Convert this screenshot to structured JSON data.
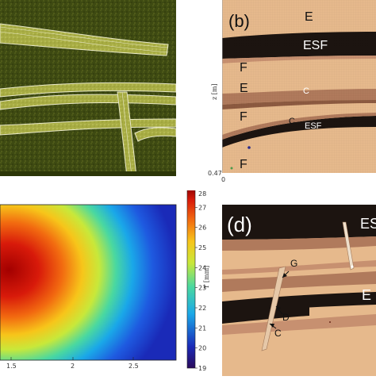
{
  "panel_b": {
    "label": "(b)",
    "layers": [
      "E",
      "ESF",
      "F",
      "E",
      "C",
      "F",
      "C",
      "ESF",
      "F"
    ],
    "y_axis_label": "z [m]",
    "y_tick_bottom": "0.47",
    "x_tick_left": "0"
  },
  "panel_c": {
    "x_ticks": [
      "1.5",
      "2",
      "2.5"
    ],
    "colorbar_ticks": [
      "28",
      "27",
      "26",
      "25",
      "24",
      "23",
      "22",
      "21",
      "20",
      "19"
    ],
    "colorbar_label": "T [mm]",
    "colorbar_min": 19,
    "colorbar_max": 28
  },
  "panel_d": {
    "label": "(d)",
    "layers": [
      "ES",
      "E"
    ],
    "annotations": [
      "G",
      "D",
      "C"
    ]
  },
  "colors": {
    "moss": "#3e4a12",
    "stripe": "#b8bd52",
    "sand": "#e6b98c",
    "esf": "#1c1410",
    "e_layer": "#b07a5c",
    "c_layer": "#c79070"
  }
}
